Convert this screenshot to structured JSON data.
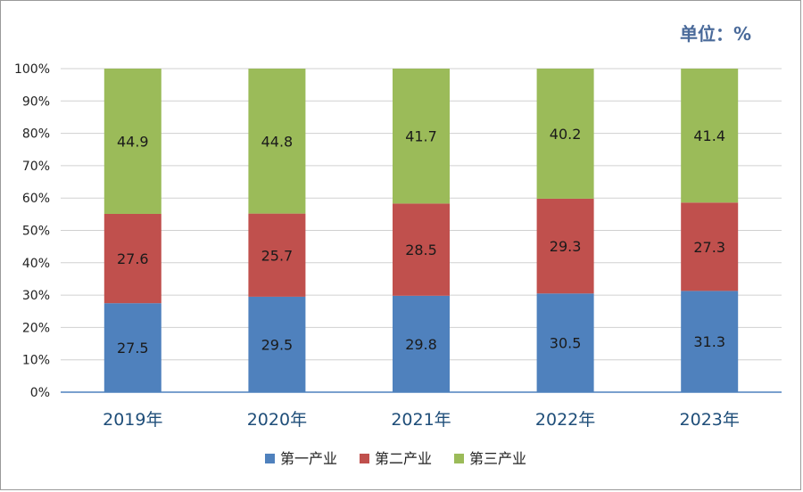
{
  "unit_label": "单位：%",
  "chart_data": {
    "type": "bar",
    "stacked": true,
    "percent_stacked": true,
    "categories": [
      "2019年",
      "2020年",
      "2021年",
      "2022年",
      "2023年"
    ],
    "series": [
      {
        "name": "第一产业",
        "color": "#4f81bd",
        "values": [
          27.5,
          29.5,
          29.8,
          30.5,
          31.3
        ]
      },
      {
        "name": "第二产业",
        "color": "#c0504d",
        "values": [
          27.6,
          25.7,
          28.5,
          29.3,
          27.3
        ]
      },
      {
        "name": "第三产业",
        "color": "#9bbb59",
        "values": [
          44.9,
          44.8,
          41.7,
          40.2,
          41.4
        ]
      }
    ],
    "ylim": [
      0,
      100
    ],
    "yticks": [
      "0%",
      "10%",
      "20%",
      "30%",
      "40%",
      "50%",
      "60%",
      "70%",
      "80%",
      "90%",
      "100%"
    ],
    "grid": true,
    "legend_position": "bottom"
  }
}
